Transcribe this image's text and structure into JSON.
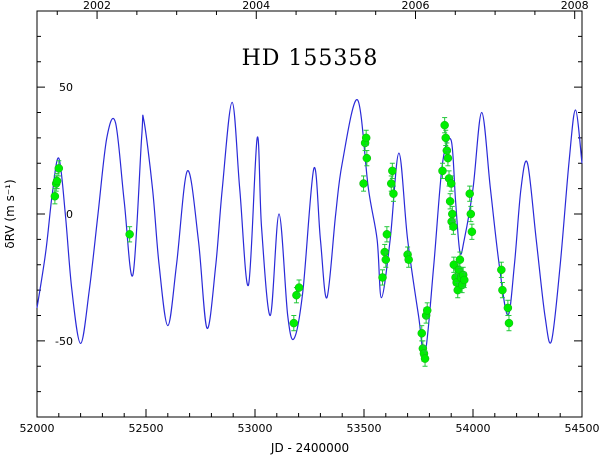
{
  "chart_data": {
    "type": "scatter",
    "title": "HD 155358",
    "xlabel": "JD - 2400000",
    "ylabel": "δRV  (m s⁻¹)",
    "xlim": [
      52000,
      54500
    ],
    "ylim": [
      -80,
      80
    ],
    "x_ticks": [
      "52000",
      "52500",
      "53000",
      "53500",
      "54000",
      "54500"
    ],
    "y_ticks": [
      "-50",
      "0",
      "50"
    ],
    "top_axis_ticks": [
      "2002",
      "2004",
      "2006",
      "2008"
    ],
    "top_axis_jd": [
      52275.5,
      53005.5,
      53736.5,
      54466.5
    ],
    "grid": false,
    "colors": {
      "model": "#2a2ad8",
      "points": "#00ee00",
      "error_bars": "#22c83a"
    },
    "series": [
      {
        "type": "line",
        "points": [
          [
            52000,
            -37
          ],
          [
            52040,
            -15
          ],
          [
            52070,
            8
          ],
          [
            52100,
            22
          ],
          [
            52130,
            0
          ],
          [
            52160,
            -30
          ],
          [
            52200,
            -51
          ],
          [
            52240,
            -30
          ],
          [
            52280,
            0
          ],
          [
            52320,
            30
          ],
          [
            52360,
            36
          ],
          [
            52400,
            5
          ],
          [
            52440,
            -24
          ],
          [
            52480,
            30
          ],
          [
            52490,
            37
          ],
          [
            52530,
            10
          ],
          [
            52560,
            -20
          ],
          [
            52600,
            -44
          ],
          [
            52640,
            -20
          ],
          [
            52690,
            17
          ],
          [
            52740,
            -10
          ],
          [
            52780,
            -45
          ],
          [
            52820,
            -20
          ],
          [
            52850,
            10
          ],
          [
            52895,
            44
          ],
          [
            52930,
            10
          ],
          [
            52970,
            -28
          ],
          [
            53010,
            30
          ],
          [
            53030,
            -5
          ],
          [
            53070,
            -40
          ],
          [
            53110,
            0
          ],
          [
            53150,
            -40
          ],
          [
            53180,
            -49
          ],
          [
            53220,
            -30
          ],
          [
            53270,
            18
          ],
          [
            53300,
            -10
          ],
          [
            53330,
            -33
          ],
          [
            53370,
            0
          ],
          [
            53400,
            20
          ],
          [
            53470,
            45
          ],
          [
            53520,
            10
          ],
          [
            53560,
            -10
          ],
          [
            53580,
            -33
          ],
          [
            53620,
            -10
          ],
          [
            53660,
            24
          ],
          [
            53700,
            -10
          ],
          [
            53750,
            -40
          ],
          [
            53780,
            -55
          ],
          [
            53820,
            -20
          ],
          [
            53860,
            20
          ],
          [
            53900,
            29
          ],
          [
            53920,
            5
          ],
          [
            53940,
            -15
          ],
          [
            53960,
            -10
          ],
          [
            54000,
            10
          ],
          [
            54040,
            40
          ],
          [
            54080,
            10
          ],
          [
            54120,
            -20
          ],
          [
            54160,
            -40
          ],
          [
            54190,
            -20
          ],
          [
            54220,
            10
          ],
          [
            54250,
            20
          ],
          [
            54290,
            -10
          ],
          [
            54330,
            -40
          ],
          [
            54360,
            -50
          ],
          [
            54400,
            -20
          ],
          [
            54440,
            20
          ],
          [
            54470,
            41
          ],
          [
            54500,
            20
          ]
        ]
      },
      {
        "type": "scatter",
        "points": [
          [
            52082,
            7,
            3
          ],
          [
            52088,
            12,
            3
          ],
          [
            52092,
            13,
            3
          ],
          [
            52100,
            18,
            3
          ],
          [
            52425,
            -8,
            3
          ],
          [
            53178,
            -43,
            3
          ],
          [
            53190,
            -32,
            3
          ],
          [
            53202,
            -29,
            3
          ],
          [
            53498,
            12,
            3
          ],
          [
            53505,
            28,
            3
          ],
          [
            53510,
            30,
            3
          ],
          [
            53513,
            22,
            3
          ],
          [
            53585,
            -25,
            3
          ],
          [
            53595,
            -15,
            3
          ],
          [
            53600,
            -18,
            3
          ],
          [
            53605,
            -8,
            3
          ],
          [
            53625,
            12,
            3
          ],
          [
            53630,
            17,
            3
          ],
          [
            53635,
            8,
            3
          ],
          [
            53700,
            -16,
            3
          ],
          [
            53705,
            -18,
            3
          ],
          [
            53765,
            -47,
            3
          ],
          [
            53770,
            -53,
            3
          ],
          [
            53775,
            -55,
            3
          ],
          [
            53780,
            -57,
            3
          ],
          [
            53785,
            -40,
            3
          ],
          [
            53790,
            -38,
            3
          ],
          [
            53860,
            17,
            3
          ],
          [
            53870,
            35,
            3
          ],
          [
            53875,
            30,
            3
          ],
          [
            53880,
            25,
            3
          ],
          [
            53885,
            22,
            3
          ],
          [
            53890,
            14,
            3
          ],
          [
            53895,
            5,
            3
          ],
          [
            53900,
            12,
            3
          ],
          [
            53902,
            -3,
            3
          ],
          [
            53905,
            0,
            3
          ],
          [
            53910,
            -5,
            3
          ],
          [
            53912,
            -20,
            3
          ],
          [
            53920,
            -25,
            3
          ],
          [
            53925,
            -27,
            3
          ],
          [
            53930,
            -30,
            3
          ],
          [
            53935,
            -22,
            3
          ],
          [
            53940,
            -18,
            3
          ],
          [
            53945,
            -25,
            3
          ],
          [
            53950,
            -28,
            3
          ],
          [
            53955,
            -24,
            3
          ],
          [
            53960,
            -26,
            3
          ],
          [
            53985,
            8,
            3
          ],
          [
            53990,
            0,
            3
          ],
          [
            53995,
            -7,
            3
          ],
          [
            54130,
            -22,
            3
          ],
          [
            54135,
            -30,
            3
          ],
          [
            54160,
            -37,
            3
          ],
          [
            54165,
            -43,
            3
          ]
        ]
      }
    ]
  }
}
